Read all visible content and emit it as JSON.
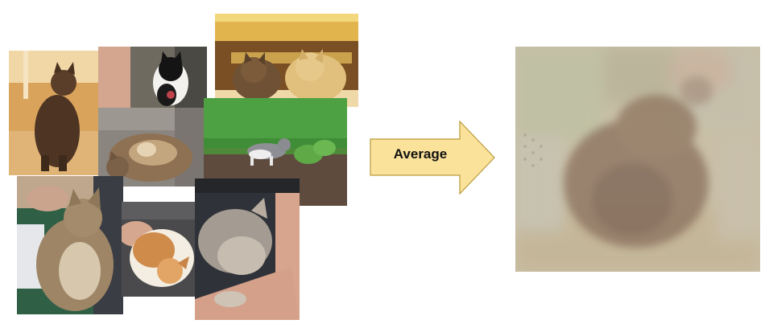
{
  "diagram": {
    "arrow_label": "Average",
    "colors": {
      "arrow_fill": "#fbe29a",
      "arrow_stroke": "#b89a3c",
      "average_base": "#c9bfa6"
    },
    "input_photos": [
      {
        "name": "cat-photo-brown-standing-icon"
      },
      {
        "name": "cat-photo-black-white-icon"
      },
      {
        "name": "cat-photo-two-kittens-icon"
      },
      {
        "name": "cat-photo-tabby-curled-icon"
      },
      {
        "name": "cat-photo-grey-white-grass-icon"
      },
      {
        "name": "cat-photo-tabby-held-icon"
      },
      {
        "name": "cat-photo-orange-white-sleeping-icon"
      },
      {
        "name": "cat-photo-grey-sleeping-arm-icon"
      }
    ],
    "output_photo": {
      "name": "average-cat-image-icon"
    }
  }
}
